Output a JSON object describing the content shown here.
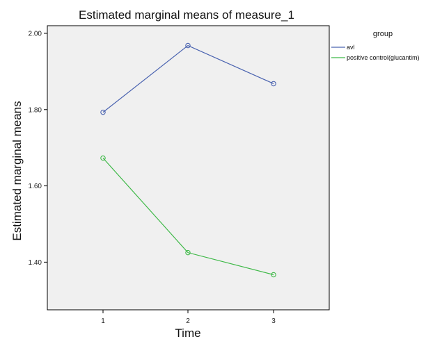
{
  "chart_data": {
    "type": "line",
    "title": "Estimated marginal means of measure_1",
    "xlabel": "Time",
    "ylabel": "Estimated marginal means",
    "categories": [
      "1",
      "2",
      "3"
    ],
    "ylim": [
      1.275,
      2.02
    ],
    "yticks": [
      "1.40",
      "1.60",
      "1.80",
      "2.00"
    ],
    "grid": false,
    "legend_title": "group",
    "legend_position": "right",
    "series": [
      {
        "name": "avl",
        "color": "#4a63b0",
        "values": [
          1.793,
          1.968,
          1.868
        ]
      },
      {
        "name": "positive control(glucantim)",
        "color": "#3fb948",
        "values": [
          1.673,
          1.425,
          1.367
        ]
      }
    ]
  }
}
